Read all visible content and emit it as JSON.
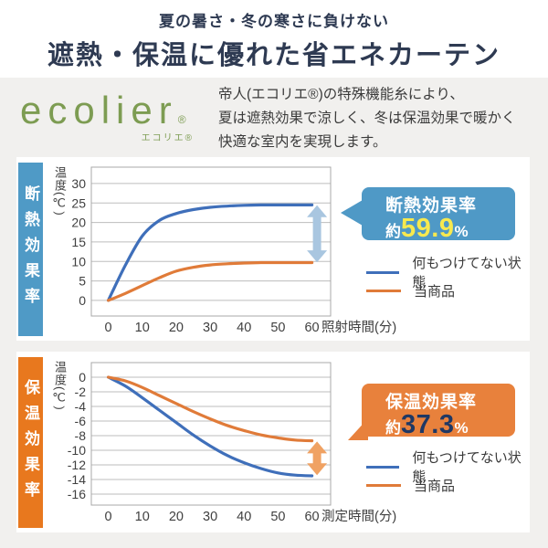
{
  "header": {
    "subtitle": "夏の暑さ・冬の寒さに負けない",
    "title": "遮熱・保温に優れた省エネカーテン"
  },
  "intro": {
    "logo": {
      "brand": "ecolier",
      "reg": "®",
      "sub": "エコリエ®"
    },
    "desc_lines": [
      "帝人(エコリエ®)の特殊機能糸により、",
      "夏は遮熱効果で涼しく、冬は保温効果で暖かく",
      "快適な室内を実現します。"
    ]
  },
  "colors": {
    "title_navy": "#2e3a52",
    "logo_green": "#7d9c52",
    "background_gray": "#f1f0ee",
    "grid_gray": "#b3b3b3"
  },
  "chart_data": [
    {
      "type": "line",
      "panel_label": "断熱効果率",
      "accent": "#4f9ac6",
      "ylabel": "温度(℃)",
      "xlabel": "照射時間(分)",
      "x_ticks": [
        0,
        10,
        20,
        30,
        40,
        50,
        60
      ],
      "y_ticks": [
        30,
        25,
        20,
        15,
        10,
        5,
        0
      ],
      "xlim": [
        -5,
        65.5
      ],
      "ylim": [
        -4,
        34.2
      ],
      "grid": true,
      "legend_position": "right-bottom",
      "x": [
        0,
        5,
        10,
        15,
        20,
        25,
        30,
        35,
        40,
        45,
        50,
        55,
        60
      ],
      "series": [
        {
          "name": "何もつけてない状態",
          "color": "#3f6fba",
          "values": [
            0,
            9,
            16.5,
            20.5,
            22.3,
            23.3,
            23.9,
            24.2,
            24.4,
            24.5,
            24.5,
            24.5,
            24.5
          ]
        },
        {
          "name": "当商品",
          "color": "#e07b39",
          "values": [
            0,
            1.8,
            3.8,
            5.8,
            7.5,
            8.5,
            9.1,
            9.4,
            9.6,
            9.7,
            9.7,
            9.7,
            9.7
          ]
        }
      ],
      "arrow": {
        "x": 61.5,
        "y1": 24.4,
        "y2": 9.8,
        "color": "#a9c6e0"
      },
      "badge": {
        "title": "断熱効果率",
        "prefix": "約",
        "value": "59.9",
        "unit": "%",
        "bg": "#4f99c6",
        "value_color": "#f7e94f",
        "tail": "left"
      }
    },
    {
      "type": "line",
      "panel_label": "保温効果率",
      "accent": "#e8781e",
      "ylabel": "温度(℃)",
      "xlabel": "測定時間(分)",
      "x_ticks": [
        0,
        10,
        20,
        30,
        40,
        50,
        60
      ],
      "y_ticks": [
        0,
        -2,
        -4,
        -6,
        -8,
        -10,
        -12,
        -14,
        -16
      ],
      "xlim": [
        -5,
        65.5
      ],
      "ylim": [
        -17.5,
        2
      ],
      "grid": true,
      "legend_position": "right-bottom",
      "x": [
        0,
        5,
        10,
        15,
        20,
        25,
        30,
        35,
        40,
        45,
        50,
        55,
        60
      ],
      "series": [
        {
          "name": "何もつけてない状態",
          "color": "#3f6fba",
          "values": [
            0,
            -1.2,
            -2.8,
            -4.5,
            -6.2,
            -7.9,
            -9.4,
            -10.7,
            -11.7,
            -12.5,
            -13.1,
            -13.4,
            -13.5
          ]
        },
        {
          "name": "当商品",
          "color": "#e07b39",
          "values": [
            0,
            -0.5,
            -1.4,
            -2.5,
            -3.6,
            -4.7,
            -5.7,
            -6.6,
            -7.3,
            -7.9,
            -8.3,
            -8.6,
            -8.7
          ]
        }
      ],
      "arrow": {
        "x": 61.5,
        "y1": -8.8,
        "y2": -13.4,
        "color": "#f0a263"
      },
      "badge": {
        "title": "保温効果率",
        "prefix": "約",
        "value": "37.3",
        "unit": "%",
        "bg": "#e8813c",
        "value_color": "#1f3864",
        "tail": "bottom-left"
      }
    }
  ]
}
